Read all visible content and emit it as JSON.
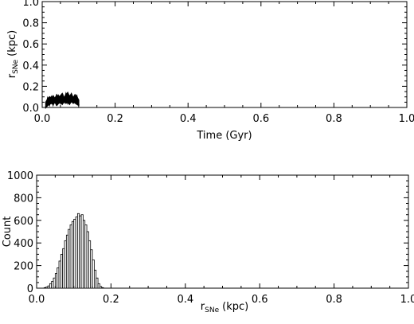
{
  "chart_data": [
    {
      "type": "line",
      "title": "",
      "xlabel": "Time (Gyr)",
      "ylabel_main": "r",
      "ylabel_sub": "SNe",
      "ylabel_unit": "(kpc)",
      "xlim": [
        0.0,
        1.0
      ],
      "ylim": [
        0.0,
        1.0
      ],
      "xticks": [
        "0.0",
        "0.2",
        "0.4",
        "0.6",
        "0.8",
        "1.0"
      ],
      "yticks": [
        "0.0",
        "0.2",
        "0.4",
        "0.6",
        "0.8",
        "1.0"
      ],
      "grid": false,
      "series": [
        {
          "x": [
            0.01,
            0.015,
            0.02,
            0.025,
            0.03,
            0.035,
            0.04,
            0.045,
            0.05,
            0.055,
            0.06,
            0.065,
            0.07,
            0.075,
            0.08,
            0.085,
            0.09,
            0.095,
            0.1
          ],
          "y_low": [
            0.0,
            0.02,
            0.03,
            0.04,
            0.03,
            0.05,
            0.02,
            0.04,
            0.05,
            0.03,
            0.06,
            0.04,
            0.05,
            0.03,
            0.06,
            0.04,
            0.05,
            0.03,
            0.02
          ],
          "y_high": [
            0.05,
            0.08,
            0.1,
            0.09,
            0.11,
            0.08,
            0.12,
            0.1,
            0.11,
            0.13,
            0.09,
            0.12,
            0.14,
            0.1,
            0.13,
            0.09,
            0.12,
            0.1,
            0.07
          ]
        }
      ]
    },
    {
      "type": "bar",
      "title": "",
      "xlabel_main": "r",
      "xlabel_sub": "SNe",
      "xlabel_unit": "(kpc)",
      "ylabel": "Count",
      "xlim": [
        0.0,
        1.0
      ],
      "ylim": [
        0,
        1000
      ],
      "xticks": [
        "0.0",
        "0.2",
        "0.4",
        "0.6",
        "0.8",
        "1.0"
      ],
      "yticks": [
        "0",
        "200",
        "400",
        "600",
        "800",
        "1000"
      ],
      "grid": false,
      "bin_start": 0.02,
      "bin_width": 0.005,
      "values": [
        5,
        10,
        20,
        40,
        60,
        90,
        130,
        180,
        240,
        300,
        350,
        420,
        470,
        520,
        560,
        590,
        610,
        630,
        660,
        640,
        650,
        600,
        560,
        500,
        420,
        340,
        250,
        160,
        90,
        40,
        15,
        5
      ]
    }
  ]
}
